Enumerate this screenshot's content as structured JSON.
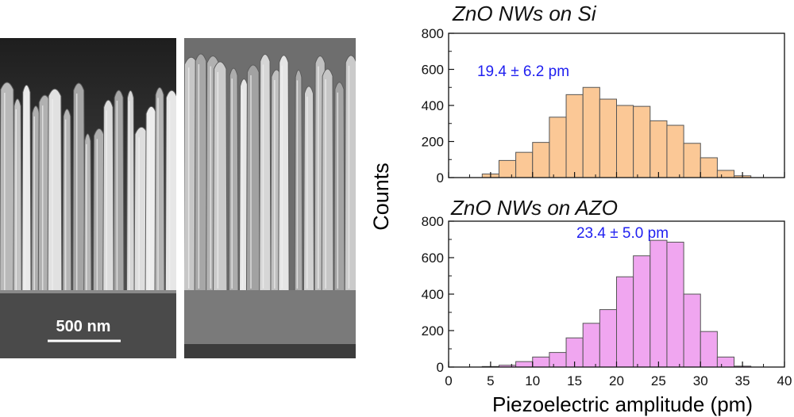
{
  "images": {
    "left": {
      "scale_bar_label": "500 nm"
    },
    "right": {}
  },
  "chart_data": [
    {
      "type": "bar",
      "title": "ZnO NWs on Si",
      "annotation": "19.4 ± 6.2 pm",
      "ylabel": "Counts",
      "xlabel": "",
      "bin_width": 2,
      "x": [
        5,
        7,
        9,
        11,
        13,
        15,
        17,
        19,
        21,
        23,
        25,
        27,
        29,
        31,
        33,
        35
      ],
      "values": [
        20,
        95,
        140,
        195,
        335,
        460,
        500,
        435,
        400,
        395,
        315,
        290,
        190,
        110,
        40,
        10
      ],
      "xlim": [
        0,
        40
      ],
      "ylim": [
        0,
        800
      ],
      "yticks": [
        0,
        200,
        400,
        600,
        800
      ],
      "color": "#fbc896",
      "annotation_color": "#1f1ff0"
    },
    {
      "type": "bar",
      "title": "ZnO NWs on AZO",
      "annotation": "23.4 ± 5.0 pm",
      "ylabel": "Counts",
      "xlabel": "Piezoelectric amplitude (pm)",
      "bin_width": 2,
      "x": [
        5,
        7,
        9,
        11,
        13,
        15,
        17,
        19,
        21,
        23,
        25,
        27,
        29,
        31,
        33,
        35
      ],
      "values": [
        3,
        10,
        30,
        55,
        80,
        160,
        240,
        315,
        495,
        610,
        695,
        685,
        400,
        195,
        55,
        5
      ],
      "xlim": [
        0,
        40
      ],
      "ylim": [
        0,
        800
      ],
      "yticks": [
        0,
        200,
        400,
        600,
        800
      ],
      "xticks": [
        0,
        5,
        10,
        15,
        20,
        25,
        30,
        35,
        40
      ],
      "color": "#f0a6f0",
      "annotation_color": "#1f1ff0"
    }
  ]
}
